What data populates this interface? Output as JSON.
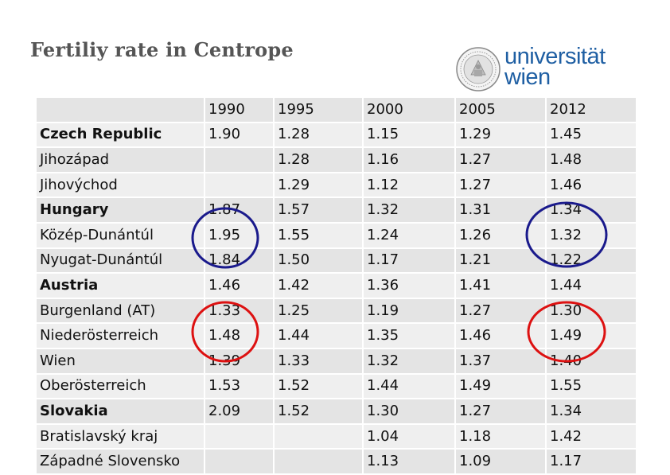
{
  "slide": {
    "title": "Fertiliy rate in Centrope",
    "logo": {
      "line1": "universität",
      "line2": "wien",
      "icon": "university-seal-icon"
    }
  },
  "table": {
    "header": [
      "",
      "1990",
      "1995",
      "2000",
      "2005",
      "2012"
    ],
    "rows": [
      {
        "label": "Czech Republic",
        "bold": true,
        "values": [
          "1.90",
          "1.28",
          "1.15",
          "1.29",
          "1.45"
        ]
      },
      {
        "label": "Jihozápad",
        "bold": false,
        "values": [
          "",
          "1.28",
          "1.16",
          "1.27",
          "1.48"
        ]
      },
      {
        "label": "Jihovýchod",
        "bold": false,
        "values": [
          "",
          "1.29",
          "1.12",
          "1.27",
          "1.46"
        ]
      },
      {
        "label": "Hungary",
        "bold": true,
        "values": [
          "1.87",
          "1.57",
          "1.32",
          "1.31",
          "1.34"
        ]
      },
      {
        "label": "Közép-Dunántúl",
        "bold": false,
        "values": [
          "1.95",
          "1.55",
          "1.24",
          "1.26",
          "1.32"
        ]
      },
      {
        "label": "Nyugat-Dunántúl",
        "bold": false,
        "values": [
          "1.84",
          "1.50",
          "1.17",
          "1.21",
          "1.22"
        ]
      },
      {
        "label": "Austria",
        "bold": true,
        "values": [
          "1.46",
          "1.42",
          "1.36",
          "1.41",
          "1.44"
        ]
      },
      {
        "label": "Burgenland (AT)",
        "bold": false,
        "values": [
          "1.33",
          "1.25",
          "1.19",
          "1.27",
          "1.30"
        ]
      },
      {
        "label": "Niederösterreich",
        "bold": false,
        "values": [
          "1.48",
          "1.44",
          "1.35",
          "1.46",
          "1.49"
        ]
      },
      {
        "label": "Wien",
        "bold": false,
        "values": [
          "1.39",
          "1.33",
          "1.32",
          "1.37",
          "1.40"
        ]
      },
      {
        "label": "Oberösterreich",
        "bold": false,
        "values": [
          "1.53",
          "1.52",
          "1.44",
          "1.49",
          "1.55"
        ]
      },
      {
        "label": "Slovakia",
        "bold": true,
        "values": [
          "2.09",
          "1.52",
          "1.30",
          "1.27",
          "1.34"
        ]
      },
      {
        "label": "Bratislavský kraj",
        "bold": false,
        "values": [
          "",
          "",
          "1.04",
          "1.18",
          "1.42"
        ]
      },
      {
        "label": "Západné Slovensko",
        "bold": false,
        "values": [
          "",
          "",
          "1.13",
          "1.09",
          "1.17"
        ]
      }
    ]
  },
  "annotations": {
    "blue_color": "#1a1a8c",
    "red_color": "#dd1111"
  }
}
